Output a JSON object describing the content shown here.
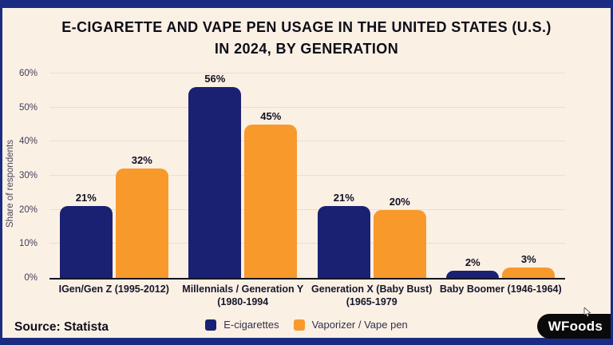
{
  "colors": {
    "frame_border": "#1c2b82",
    "background": "#fbf0e4",
    "gridline": "#e7dfd3",
    "baseline": "#15151f",
    "logo_pill": "#0a0a0a",
    "bar_navy": "#1a2173",
    "bar_orange": "#f8992c"
  },
  "title": {
    "line1": "E-CIGARETTE AND VAPE PEN USAGE IN THE UNITED STATES (U.S.)",
    "line2": "IN 2024, BY GENERATION"
  },
  "chart_data": {
    "type": "bar",
    "title": "E-CIGARETTE AND VAPE PEN USAGE IN THE UNITED STATES (U.S.) IN 2024, BY GENERATION",
    "xlabel": "",
    "ylabel": "Share of respondents",
    "ylim": [
      0,
      60
    ],
    "grid": true,
    "legend_position": "bottom",
    "value_label_suffix": "%",
    "yticks": [
      {
        "label": "0%",
        "value": 0
      },
      {
        "label": "10%",
        "value": 10
      },
      {
        "label": "20%",
        "value": 20
      },
      {
        "label": "30%",
        "value": 30
      },
      {
        "label": "40%",
        "value": 40
      },
      {
        "label": "50%",
        "value": 50
      },
      {
        "label": "60%",
        "value": 60
      }
    ],
    "categories": [
      {
        "line1": "IGen/Gen Z (1995-2012)",
        "line2": ""
      },
      {
        "line1": "Millennials / Generation Y",
        "line2": "(1980-1994"
      },
      {
        "line1": "Generation X (Baby Bust)",
        "line2": "(1965-1979"
      },
      {
        "line1": "Baby Boomer (1946-1964)",
        "line2": ""
      }
    ],
    "series": [
      {
        "name": "E-cigarettes",
        "color": "#1a2173",
        "values": [
          21,
          56,
          21,
          2
        ]
      },
      {
        "name": "Vaporizer / Vape pen",
        "color": "#f8992c",
        "values": [
          32,
          45,
          20,
          3
        ]
      }
    ]
  },
  "source": {
    "label": "Source: Statista"
  },
  "logo": {
    "text": "WFoods"
  }
}
